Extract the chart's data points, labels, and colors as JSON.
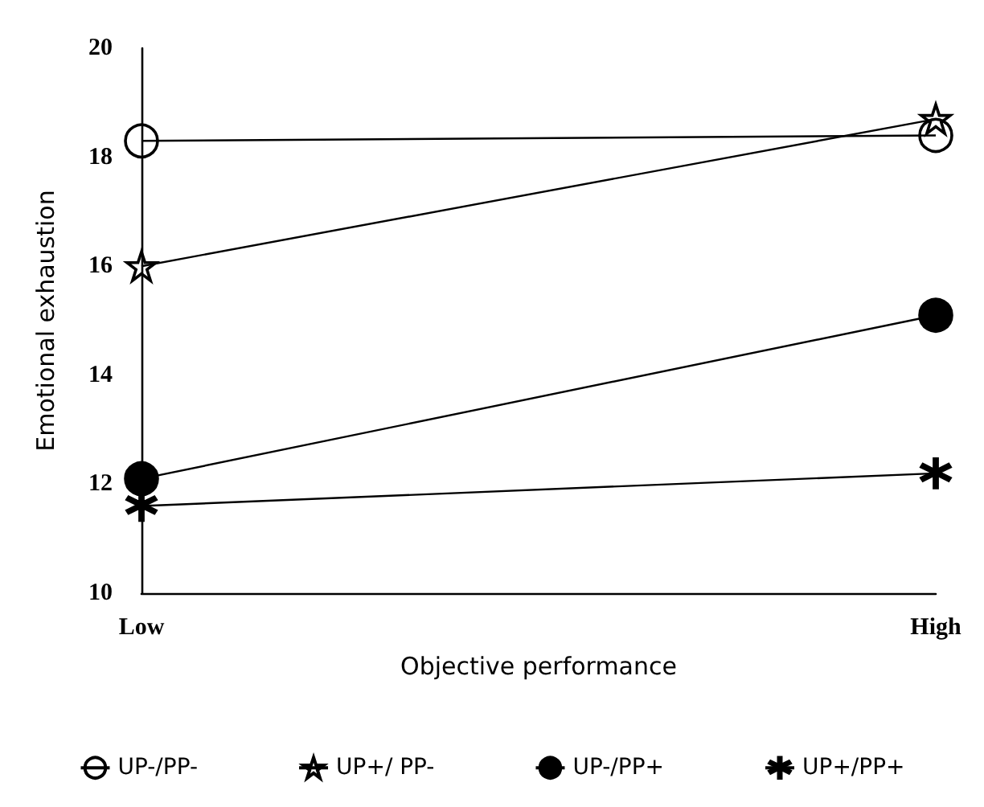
{
  "chart_data": {
    "type": "line",
    "xlabel": "Objective performance",
    "ylabel": "Emotional exhaustion",
    "categories": [
      "Low",
      "High"
    ],
    "series": [
      {
        "name": "UP-/PP-",
        "color": "#000000",
        "marker": "circle",
        "values": [
          18.3,
          18.4
        ]
      },
      {
        "name": "UP+/ PP-",
        "color": "#000000",
        "marker": "star",
        "values": [
          16.0,
          18.7
        ]
      },
      {
        "name": "UP-/PP+",
        "color": "#000000",
        "marker": "circle",
        "values": [
          12.1,
          15.1
        ]
      },
      {
        "name": "UP+/PP+",
        "color": "#000000",
        "marker": "cross",
        "values": [
          11.6,
          12.2
        ]
      }
    ],
    "ylim": [
      10,
      20
    ],
    "yticks": [
      10,
      12,
      14,
      16,
      18,
      20
    ],
    "grid": false,
    "legend": "bottom",
    "line_style": "solid"
  }
}
